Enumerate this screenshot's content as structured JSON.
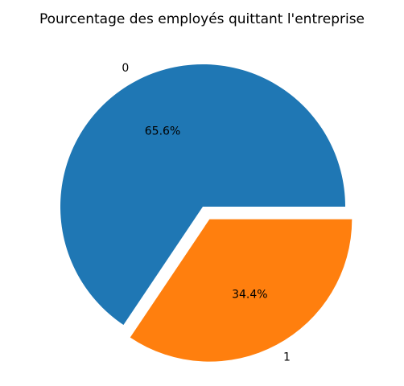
{
  "chart_data": {
    "type": "pie",
    "title": "Pourcentage des employés quittant l'entreprise",
    "labels": [
      "0",
      "1"
    ],
    "values": [
      65.6,
      34.4
    ],
    "percent_labels": [
      "65.6%",
      "34.4%"
    ],
    "explode": [
      0,
      0.1
    ],
    "colors": [
      "#1f77b4",
      "#ff7f0e"
    ],
    "start_angle_deg": 0,
    "direction": "counterclockwise"
  }
}
